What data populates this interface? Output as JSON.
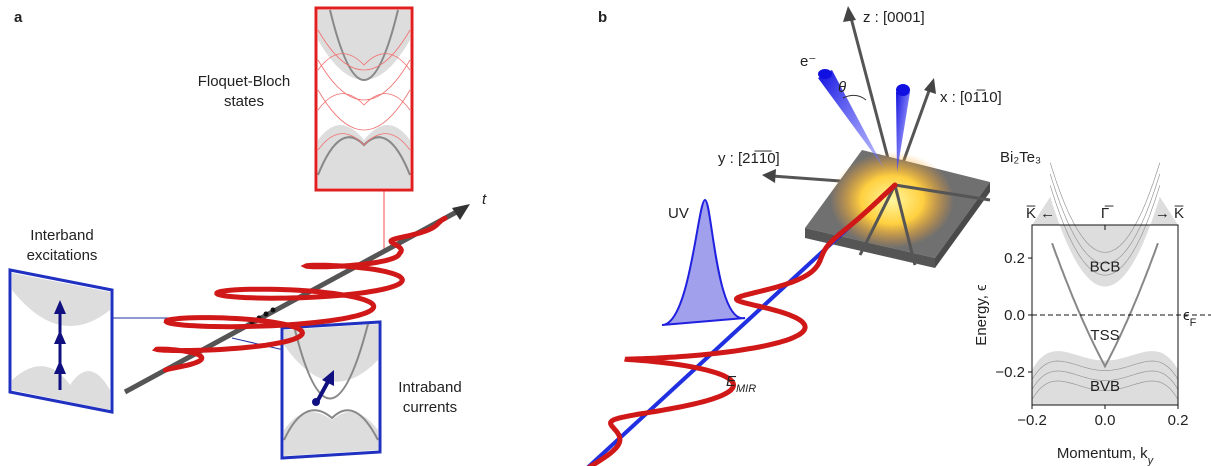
{
  "panel_a": {
    "label": "a",
    "floquet_label": [
      "Floquet-Bloch",
      "states"
    ],
    "interband_label": [
      "Interband",
      "excitations"
    ],
    "intraband_label": [
      "Intraband",
      "currents"
    ],
    "time_axis": "t"
  },
  "panel_b": {
    "label": "b",
    "z_axis": "z : [0001]",
    "x_axis": "x : [01̅10]",
    "y_axis": "y : [21̅1̅0]",
    "electron": "e⁻",
    "angle": "θ",
    "material": "Bi₂Te₃",
    "uv": "UV",
    "field": {
      "main": "E",
      "sub": "MIR"
    }
  },
  "inset": {
    "xlim": [
      -0.2,
      0.2
    ],
    "ylim": [
      -0.316,
      0.316
    ],
    "xticks": [
      {
        "value": -0.2,
        "label": "−0.2"
      },
      {
        "value": 0,
        "label": "0.0"
      },
      0.2
    ],
    "yticks": [
      0.2,
      {
        "value": 0,
        "label": "0.0"
      },
      {
        "value": -0.2,
        "label": "−0.2"
      }
    ],
    "xlabel": {
      "main": "Momentum, k",
      "sub": "y"
    },
    "ylabel": "Energy, ϵ",
    "top_labels": [
      "K̅ ←",
      "Γ̅",
      "→ K̅"
    ],
    "fermi_label": {
      "main": "ϵ",
      "sub": "F"
    },
    "regions": [
      "BCB",
      "TSS",
      "BVB"
    ]
  }
}
